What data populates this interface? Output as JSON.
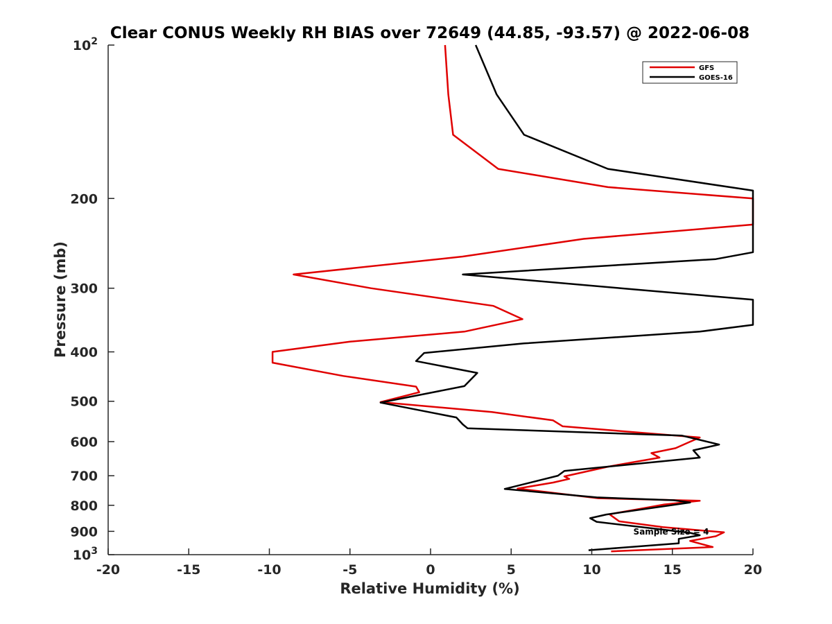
{
  "chart_data": {
    "type": "line",
    "title": "Clear CONUS Weekly RH BIAS over 72649 (44.85, -93.57) @ 2022-06-08",
    "xlabel": "Relative Humidity (%)",
    "ylabel": "Pressure (mb)",
    "xlim": [
      -20,
      20
    ],
    "ylim": [
      100,
      1000
    ],
    "y_scale": "log",
    "y_reversed": true,
    "grid": false,
    "legend_position": "top-right",
    "annotation": "Sample Size = 4",
    "x_ticks": [
      {
        "value": -20,
        "label": "-20"
      },
      {
        "value": -15,
        "label": "-15"
      },
      {
        "value": -10,
        "label": "-10"
      },
      {
        "value": -5,
        "label": "-5"
      },
      {
        "value": 0,
        "label": "0"
      },
      {
        "value": 5,
        "label": "5"
      },
      {
        "value": 10,
        "label": "10"
      },
      {
        "value": 15,
        "label": "15"
      },
      {
        "value": 20,
        "label": "20"
      }
    ],
    "y_ticks": [
      {
        "value": 100,
        "label": "10",
        "sup": "2"
      },
      {
        "value": 200,
        "label": "200",
        "sup": ""
      },
      {
        "value": 300,
        "label": "300",
        "sup": ""
      },
      {
        "value": 400,
        "label": "400",
        "sup": ""
      },
      {
        "value": 500,
        "label": "500",
        "sup": ""
      },
      {
        "value": 600,
        "label": "600",
        "sup": ""
      },
      {
        "value": 700,
        "label": "700",
        "sup": ""
      },
      {
        "value": 800,
        "label": "800",
        "sup": ""
      },
      {
        "value": 900,
        "label": "900",
        "sup": ""
      },
      {
        "value": 1000,
        "label": "10",
        "sup": "3"
      }
    ],
    "series": [
      {
        "name": "GFS",
        "color": "#e00000",
        "points": [
          [
            0.9,
            100
          ],
          [
            1.1,
            125
          ],
          [
            1.4,
            150
          ],
          [
            4.2,
            175
          ],
          [
            11,
            190
          ],
          [
            20,
            200
          ],
          [
            20,
            225
          ],
          [
            9.5,
            240
          ],
          [
            2,
            260
          ],
          [
            -8.5,
            282
          ],
          [
            -3.7,
            300
          ],
          [
            3.9,
            325
          ],
          [
            5.7,
            345
          ],
          [
            2.1,
            365
          ],
          [
            -5,
            382
          ],
          [
            -9.8,
            400
          ],
          [
            -9.8,
            420
          ],
          [
            -5.4,
            446
          ],
          [
            -0.9,
            468
          ],
          [
            -0.7,
            480
          ],
          [
            -3.1,
            502
          ],
          [
            3.8,
            525
          ],
          [
            7.6,
            545
          ],
          [
            8.2,
            560
          ],
          [
            16.7,
            589
          ],
          [
            15.9,
            604
          ],
          [
            15.2,
            618
          ],
          [
            13.7,
            632
          ],
          [
            14.2,
            645
          ],
          [
            11,
            672
          ],
          [
            8.3,
            702
          ],
          [
            8.6,
            710
          ],
          [
            7.6,
            722
          ],
          [
            5.4,
            742
          ],
          [
            10.4,
            775
          ],
          [
            16.7,
            784
          ],
          [
            14.5,
            797
          ],
          [
            12.8,
            815
          ],
          [
            11.1,
            833
          ],
          [
            11.7,
            860
          ],
          [
            14.4,
            883
          ],
          [
            18.2,
            904
          ],
          [
            17.7,
            920
          ],
          [
            16.1,
            940
          ],
          [
            17.5,
            966
          ],
          [
            11.2,
            985
          ]
        ]
      },
      {
        "name": "GOES-16",
        "color": "#000000",
        "points": [
          [
            2.8,
            100
          ],
          [
            4.1,
            125
          ],
          [
            5.8,
            150
          ],
          [
            11,
            175
          ],
          [
            20,
            193
          ],
          [
            20,
            255
          ],
          [
            17.7,
            263
          ],
          [
            2,
            282
          ],
          [
            11.8,
            300
          ],
          [
            20,
            316
          ],
          [
            20,
            354
          ],
          [
            16.7,
            365
          ],
          [
            5.8,
            385
          ],
          [
            -0.4,
            402
          ],
          [
            -0.9,
            417
          ],
          [
            2.9,
            440
          ],
          [
            2.1,
            467
          ],
          [
            -3.1,
            503
          ],
          [
            1.6,
            538
          ],
          [
            2,
            555
          ],
          [
            2.3,
            565
          ],
          [
            15.6,
            584
          ],
          [
            17.9,
            608
          ],
          [
            16.3,
            624
          ],
          [
            16.7,
            645
          ],
          [
            8.3,
            685
          ],
          [
            7.9,
            700
          ],
          [
            4.6,
            743
          ],
          [
            10.3,
            772
          ],
          [
            15.1,
            782
          ],
          [
            16.1,
            790
          ],
          [
            10.9,
            834
          ],
          [
            9.9,
            848
          ],
          [
            10.3,
            862
          ],
          [
            16.1,
            906
          ],
          [
            16.7,
            916
          ],
          [
            15.4,
            931
          ],
          [
            15.4,
            950
          ],
          [
            9.8,
            980
          ]
        ]
      }
    ]
  }
}
